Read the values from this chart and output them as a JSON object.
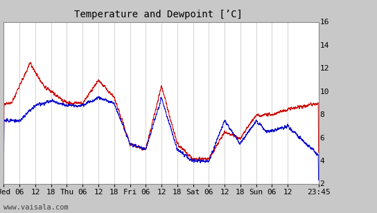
{
  "title": "Temperature and Dewpoint [’C]",
  "ylabel_right_ticks": [
    2,
    4,
    6,
    8,
    10,
    12,
    14,
    16
  ],
  "ylim": [
    2,
    16
  ],
  "xlabel_ticks": [
    "Wed",
    "06",
    "12",
    "18",
    "Thu",
    "06",
    "12",
    "18",
    "Fri",
    "06",
    "12",
    "18",
    "Sat",
    "06",
    "12",
    "18",
    "Sun",
    "06",
    "12",
    "23:45"
  ],
  "watermark": "www.vaisala.com",
  "plot_bg_color": "#ffffff",
  "fig_bg_color": "#c8c8c8",
  "grid_color": "#c0c0c0",
  "temp_color": "#cc0000",
  "dew_color": "#0000cc",
  "title_fontsize": 10,
  "tick_fontsize": 8,
  "watermark_fontsize": 7.5
}
